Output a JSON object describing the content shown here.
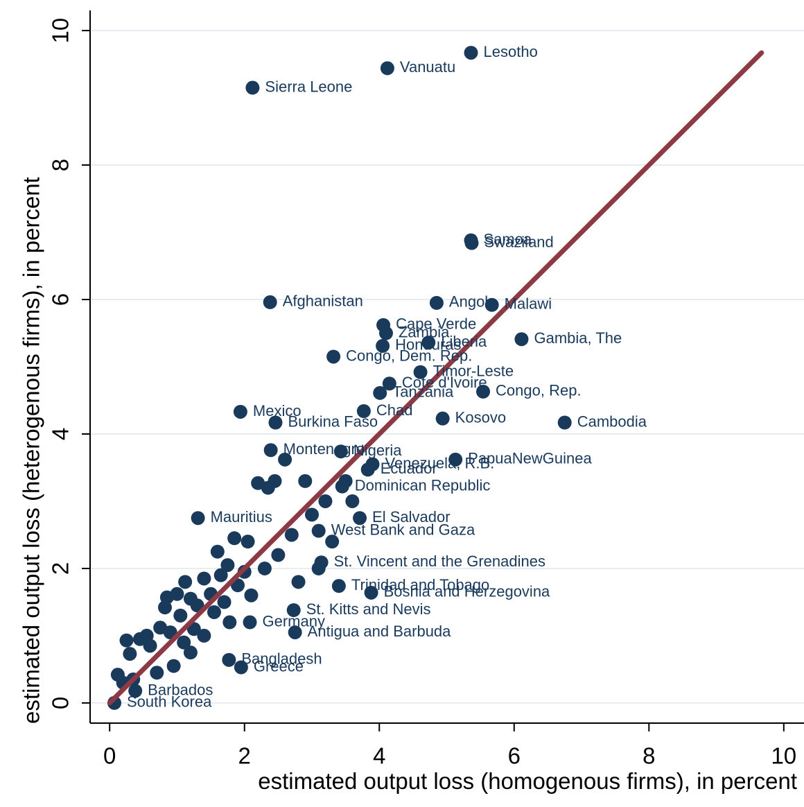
{
  "chart_data": {
    "type": "scatter",
    "x_label": "estimated output loss (homogenous firms), in percent",
    "y_label": "estimated output loss (heterogenous firms), in percent",
    "xlim": [
      -0.29,
      10.3
    ],
    "ylim": [
      -0.3,
      10.3
    ],
    "xticks": [
      0,
      2,
      4,
      6,
      8,
      10
    ],
    "yticks": [
      0,
      2,
      4,
      6,
      8,
      10
    ],
    "grid": true,
    "series": [
      {
        "color": "#1a3a5c",
        "x": [
          5.36,
          4.12,
          2.12,
          5.36,
          5.37,
          2.38,
          4.85,
          5.67,
          4.06,
          4.1,
          4.05,
          4.73,
          6.11,
          3.32,
          4.61,
          4.15,
          4.01,
          5.54,
          3.77,
          1.94,
          2.46,
          4.94,
          6.75,
          2.39,
          3.43,
          5.13,
          3.9,
          3.83,
          3.45,
          1.31,
          3.71,
          3.1,
          3.14,
          2.73,
          2.75,
          2.08,
          3.88,
          3.4,
          1.95,
          1.77,
          0.07,
          0.38,
          0.12,
          0.25,
          0.3,
          0.45,
          0.55,
          0.6,
          0.75,
          0.82,
          0.85,
          0.9,
          1.0,
          1.05,
          1.12,
          1.2,
          1.25,
          1.3,
          1.4,
          1.5,
          1.55,
          1.6,
          1.65,
          1.7,
          1.75,
          1.78,
          1.85,
          1.9,
          2.0,
          2.05,
          2.1,
          2.2,
          2.3,
          2.35,
          2.45,
          2.5,
          2.6,
          2.7,
          2.8,
          2.9,
          3.0,
          3.1,
          3.2,
          3.3,
          3.5,
          3.6,
          0.95,
          1.1,
          0.7,
          0.35,
          0.2,
          1.4,
          1.2
        ],
        "y": [
          9.67,
          9.44,
          9.15,
          6.88,
          6.84,
          5.96,
          5.95,
          5.92,
          5.62,
          5.5,
          5.31,
          5.36,
          5.41,
          5.15,
          4.92,
          4.75,
          4.61,
          4.63,
          4.34,
          4.33,
          4.17,
          4.23,
          4.17,
          3.76,
          3.74,
          3.62,
          3.55,
          3.47,
          3.22,
          2.75,
          2.75,
          2.56,
          2.09,
          1.38,
          1.05,
          1.2,
          1.64,
          1.74,
          0.53,
          0.64,
          0.0,
          0.18,
          0.42,
          0.93,
          0.73,
          0.95,
          1.0,
          0.85,
          1.12,
          1.42,
          1.57,
          1.05,
          1.62,
          1.3,
          1.8,
          1.55,
          1.1,
          1.45,
          1.85,
          1.62,
          1.35,
          2.25,
          1.9,
          1.5,
          2.05,
          1.2,
          2.45,
          1.75,
          1.95,
          2.4,
          1.6,
          3.27,
          2.0,
          3.2,
          3.3,
          2.2,
          3.62,
          2.5,
          1.8,
          3.3,
          2.8,
          2.0,
          3.0,
          2.4,
          3.3,
          3.0,
          0.55,
          0.9,
          0.45,
          0.35,
          0.3,
          1.0,
          0.75
        ],
        "labels": [
          "Lesotho",
          "Vanuatu",
          "Sierra Leone",
          "Samoa",
          "Swaziland",
          "Afghanistan",
          "Angola",
          "Malawi",
          "Cape Verde",
          "Zambia",
          "Honduras",
          "Liberia",
          "Gambia, The",
          "Congo, Dem. Rep.",
          "Timor-Leste",
          "Cote d'Ivoire",
          "Tanzania",
          "Congo, Rep.",
          "Chad",
          "Mexico",
          "Burkina Faso",
          "Kosovo",
          "Cambodia",
          "Montenegro",
          "Nigeria",
          "PapuaNewGuinea",
          "Venezuela, R.B.",
          "Ecuador",
          "Dominican Republic",
          "Mauritius",
          "El Salvador",
          "West Bank and Gaza",
          "St. Vincent and the Grenadines",
          "St. Kitts and Nevis",
          "Antigua and Barbuda",
          "Germany",
          "Bosnia and Herzegovina",
          "Trinidad and Tobago",
          "Greece",
          "Bangladesh",
          "South Korea",
          "Barbados",
          null,
          null,
          null,
          null,
          null,
          null,
          null,
          null,
          null,
          null,
          null,
          null,
          null,
          null,
          null,
          null,
          null,
          null,
          null,
          null,
          null,
          null,
          null,
          null,
          null,
          null,
          null,
          null,
          null,
          null,
          null,
          null,
          null,
          null,
          null,
          null,
          null,
          null,
          null,
          null,
          null,
          null,
          null,
          null,
          null,
          null,
          null,
          null,
          null,
          null,
          null
        ]
      }
    ],
    "reference_line": {
      "color": "#8e3a44",
      "x": [
        0,
        9.67
      ],
      "y": [
        0,
        9.67
      ]
    }
  }
}
